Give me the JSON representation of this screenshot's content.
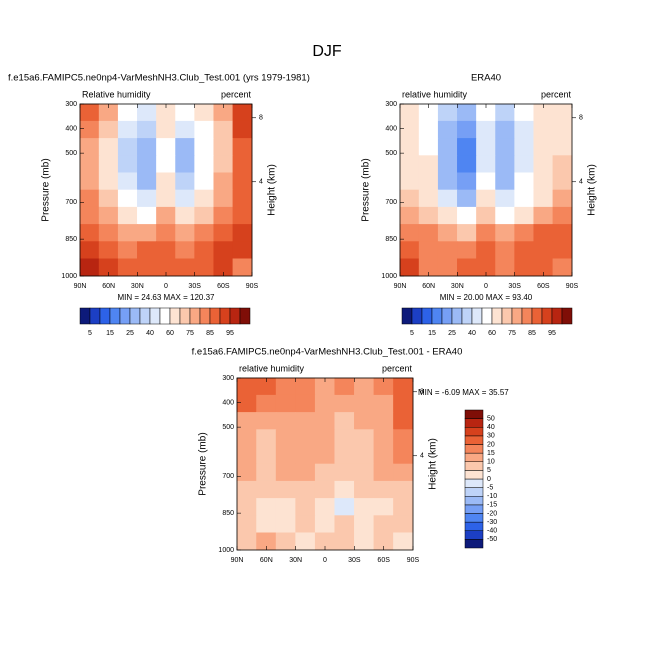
{
  "title": "DJF",
  "chart_data": [
    {
      "type": "contour",
      "title": "f.e15a6.FAMIPC5.ne0np4-VarMeshNH3.Club_Test.001 (yrs 1979-1981)",
      "subtitle_left": "Relative humidity",
      "subtitle_right": "percent",
      "ylabel": "Pressure (mb)",
      "y2label": "Height (km)",
      "annotation": "MIN = 24.63  MAX = 120.37",
      "xlim": [
        90,
        -90
      ],
      "xticks": [
        {
          "value": 90,
          "label": "90N"
        },
        {
          "value": 60,
          "label": "60N"
        },
        {
          "value": 30,
          "label": "30N"
        },
        0,
        {
          "value": -30,
          "label": "30S"
        },
        {
          "value": -60,
          "label": "60S"
        },
        {
          "value": -90,
          "label": "90S"
        }
      ],
      "ylim": [
        1000,
        300
      ],
      "yticks": [
        300,
        400,
        500,
        700,
        850,
        1000
      ],
      "y2lim": [
        0.11,
        9.16
      ],
      "y2ticks": [
        4,
        8
      ],
      "x": [
        80,
        60,
        40,
        20,
        0,
        -20,
        -40,
        -60,
        -80
      ],
      "y": [
        335,
        405,
        475,
        545,
        615,
        685,
        755,
        825,
        895,
        965
      ],
      "values": [
        [
          85,
          75,
          55,
          45,
          60,
          50,
          60,
          75,
          90
        ],
        [
          80,
          70,
          45,
          35,
          60,
          40,
          55,
          70,
          90
        ],
        [
          75,
          65,
          35,
          25,
          55,
          30,
          50,
          70,
          85
        ],
        [
          75,
          65,
          35,
          25,
          55,
          30,
          50,
          70,
          85
        ],
        [
          75,
          65,
          40,
          30,
          60,
          35,
          55,
          75,
          85
        ],
        [
          80,
          70,
          50,
          40,
          65,
          45,
          60,
          75,
          85
        ],
        [
          80,
          75,
          65,
          55,
          75,
          60,
          70,
          80,
          85
        ],
        [
          85,
          80,
          75,
          75,
          80,
          75,
          80,
          85,
          90
        ],
        [
          90,
          85,
          80,
          85,
          85,
          80,
          85,
          90,
          90
        ],
        [
          95,
          90,
          85,
          85,
          85,
          85,
          85,
          90,
          80
        ]
      ],
      "colorbar": {
        "orientation": "horizontal",
        "ticks": [
          5,
          15,
          25,
          40,
          60,
          75,
          85,
          95
        ],
        "colors": [
          "#0d1a7a",
          "#1c3fc4",
          "#2d62e8",
          "#4f85f2",
          "#769ff5",
          "#9bbaf6",
          "#bed3f8",
          "#dde8fa",
          "#ffffff",
          "#fde3d2",
          "#fbc8ad",
          "#f9a884",
          "#f4855b",
          "#ea6236",
          "#d6411d",
          "#b82511",
          "#7f0e07"
        ]
      }
    },
    {
      "type": "contour",
      "title": "ERA40",
      "subtitle_left": "relative humidity",
      "subtitle_right": "percent",
      "ylabel": "Pressure (mb)",
      "y2label": "Height (km)",
      "annotation": "MIN = 20.00  MAX = 93.40",
      "xlim": [
        90,
        -90
      ],
      "xticks": [
        {
          "value": 90,
          "label": "90N"
        },
        {
          "value": 60,
          "label": "60N"
        },
        {
          "value": 30,
          "label": "30N"
        },
        0,
        {
          "value": -30,
          "label": "30S"
        },
        {
          "value": -60,
          "label": "60S"
        },
        {
          "value": -90,
          "label": "90S"
        }
      ],
      "ylim": [
        1000,
        300
      ],
      "yticks": [
        300,
        400,
        500,
        700,
        850,
        1000
      ],
      "y2lim": [
        0.11,
        9.16
      ],
      "y2ticks": [
        4,
        8
      ],
      "x": [
        80,
        60,
        40,
        20,
        0,
        -20,
        -40,
        -60,
        -80
      ],
      "y": [
        335,
        405,
        475,
        545,
        615,
        685,
        755,
        825,
        895,
        965
      ],
      "values": [
        [
          60,
          55,
          35,
          25,
          50,
          35,
          50,
          60,
          65
        ],
        [
          60,
          55,
          30,
          20,
          45,
          30,
          45,
          60,
          65
        ],
        [
          65,
          55,
          25,
          15,
          45,
          25,
          40,
          60,
          65
        ],
        [
          65,
          60,
          25,
          15,
          45,
          25,
          45,
          60,
          70
        ],
        [
          65,
          60,
          30,
          20,
          50,
          30,
          50,
          65,
          70
        ],
        [
          70,
          65,
          40,
          30,
          60,
          40,
          55,
          65,
          75
        ],
        [
          75,
          70,
          60,
          50,
          70,
          55,
          65,
          75,
          80
        ],
        [
          80,
          80,
          75,
          70,
          80,
          75,
          80,
          85,
          85
        ],
        [
          85,
          80,
          80,
          80,
          85,
          80,
          85,
          85,
          85
        ],
        [
          90,
          80,
          80,
          85,
          85,
          80,
          85,
          85,
          80
        ]
      ],
      "colorbar": {
        "orientation": "horizontal",
        "ticks": [
          5,
          15,
          25,
          40,
          60,
          75,
          85,
          95
        ],
        "colors": [
          "#0d1a7a",
          "#1c3fc4",
          "#2d62e8",
          "#4f85f2",
          "#769ff5",
          "#9bbaf6",
          "#bed3f8",
          "#dde8fa",
          "#ffffff",
          "#fde3d2",
          "#fbc8ad",
          "#f9a884",
          "#f4855b",
          "#ea6236",
          "#d6411d",
          "#b82511",
          "#7f0e07"
        ]
      }
    },
    {
      "type": "contour",
      "title": "f.e15a6.FAMIPC5.ne0np4-VarMeshNH3.Club_Test.001 - ERA40",
      "subtitle_left": "relative humidity",
      "subtitle_right": "percent",
      "ylabel": "Pressure (mb)",
      "y2label": "Height (km)",
      "annotation": "MIN = -6.09  MAX = 35.57",
      "xlim": [
        90,
        -90
      ],
      "xticks": [
        {
          "value": 90,
          "label": "90N"
        },
        {
          "value": 60,
          "label": "60N"
        },
        {
          "value": 30,
          "label": "30N"
        },
        0,
        {
          "value": -30,
          "label": "30S"
        },
        {
          "value": -60,
          "label": "60S"
        },
        {
          "value": -90,
          "label": "90S"
        }
      ],
      "ylim": [
        1000,
        300
      ],
      "yticks": [
        300,
        400,
        500,
        700,
        850,
        1000
      ],
      "y2lim": [
        0.11,
        9.16
      ],
      "y2ticks": [
        4,
        8
      ],
      "x": [
        80,
        60,
        40,
        20,
        0,
        -20,
        -40,
        -60,
        -80
      ],
      "y": [
        335,
        405,
        475,
        545,
        615,
        685,
        755,
        825,
        895,
        965
      ],
      "values": [
        [
          25,
          20,
          15,
          15,
          10,
          15,
          10,
          15,
          25
        ],
        [
          20,
          15,
          15,
          15,
          10,
          10,
          10,
          10,
          25
        ],
        [
          10,
          10,
          10,
          10,
          10,
          5,
          10,
          10,
          20
        ],
        [
          10,
          5,
          10,
          10,
          10,
          5,
          5,
          10,
          15
        ],
        [
          10,
          5,
          10,
          10,
          10,
          5,
          5,
          10,
          15
        ],
        [
          10,
          5,
          10,
          10,
          5,
          5,
          5,
          10,
          10
        ],
        [
          5,
          5,
          5,
          5,
          5,
          0,
          5,
          5,
          5
        ],
        [
          5,
          0,
          0,
          5,
          0,
          -2,
          0,
          0,
          5
        ],
        [
          5,
          0,
          0,
          5,
          0,
          5,
          0,
          5,
          5
        ],
        [
          5,
          10,
          5,
          0,
          5,
          5,
          0,
          5,
          0
        ]
      ],
      "colorbar": {
        "orientation": "vertical",
        "ticks": [
          -50,
          -40,
          -30,
          -20,
          -15,
          -10,
          -5,
          0,
          5,
          10,
          15,
          20,
          30,
          40,
          50
        ],
        "colors": [
          "#0d1a7a",
          "#1c3fc4",
          "#2d62e8",
          "#4f85f2",
          "#769ff5",
          "#9bbaf6",
          "#bed3f8",
          "#dde8fa",
          "#fde3d2",
          "#fbc8ad",
          "#f9a884",
          "#f4855b",
          "#ea6236",
          "#d6411d",
          "#b82511",
          "#7f0e07"
        ]
      }
    }
  ]
}
